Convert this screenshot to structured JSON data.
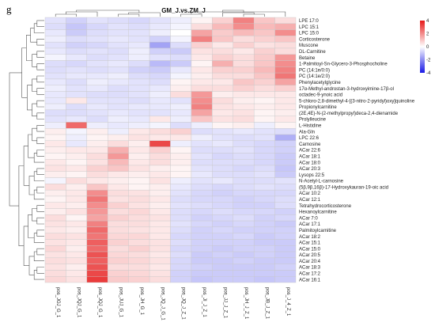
{
  "panel_letter": "g",
  "chart_data": {
    "type": "heatmap",
    "title": "GM_J.vs.ZM_J",
    "columns": [
      "pos_JGJ_G_1",
      "pos_JQJ_G_1",
      "pos_JQJ_G_1",
      "pos_JUJ_G_1",
      "pos_JH_G_1",
      "pos_JQ_J_G_1",
      "pos_JQ_J_Z_1",
      "pos_JI_J_Z_1",
      "pos_JJ_J_Z_1",
      "pos_JH_J_Z_1",
      "pos_JB_J_Z_1",
      "pos_J_4_Z_1"
    ],
    "rows": [
      "LPE 17:0",
      "LPC 15:1",
      "LPC 15:0",
      "Corticosterone",
      "Muscone",
      "DL-Carnitine",
      "Betaine",
      "1-Palmitoyl-Sn-Glycero-3-Phosphocholine",
      "PC (14:1e/0:0)",
      "PC (14:1e/2:0)",
      "Phenylacetylglycine",
      "17α-Methyl-androstan-3-hydroxyimine-17β-ol",
      "octadec-9-ynoic acid",
      "5-chloro-2,8-dimethyl-4-[(3-nitro-2-pyridyl)oxy]quinoline",
      "Propionylcarnitine",
      "(2E,4E)-N-(2-methylpropyl)deca-2,4-dienamide",
      "Prolylleucine",
      "L-Histidine",
      "Ala-Gln",
      "LPC 22:6",
      "Carnosine",
      "ACar 22:6",
      "ACar 18:1",
      "ACar 18:0",
      "ACar 20:3",
      "Lysops 22:5",
      "N-Acetyl-L-carnosine",
      "(5β,9β,16β)-17-Hydroxykauran-19-oic acid",
      "ACar 10:2",
      "ACar 12:1",
      "Tetrahydrocorticosterone",
      "Hexanoylcarnitine",
      "ACar 7:0",
      "ACar 17:1",
      "Palmitoylcarnitine",
      "ACar 18:2",
      "ACar 15:1",
      "ACar 15:0",
      "ACar 20:5",
      "ACar 20:4",
      "ACar 18:3",
      "ACar 17:2",
      "ACar 16:1"
    ],
    "values": [
      [
        -0.5,
        -0.8,
        -0.5,
        -0.6,
        -0.7,
        -0.5,
        -0.3,
        0.2,
        0.8,
        2.2,
        1.0,
        0.6
      ],
      [
        -0.6,
        -1.0,
        -0.7,
        -0.5,
        -0.6,
        -0.4,
        -0.2,
        0.6,
        1.2,
        2.0,
        1.2,
        1.4
      ],
      [
        -0.4,
        -0.9,
        -0.6,
        -0.5,
        -0.5,
        -0.3,
        0.0,
        1.6,
        0.9,
        1.2,
        1.0,
        2.0
      ],
      [
        -0.3,
        -0.6,
        -0.5,
        -0.4,
        -0.5,
        -0.8,
        -0.2,
        2.2,
        1.0,
        0.6,
        0.8,
        1.0
      ],
      [
        -0.5,
        -0.8,
        -0.7,
        -0.5,
        -0.4,
        -1.6,
        -0.6,
        0.8,
        0.4,
        0.8,
        0.5,
        0.6
      ],
      [
        -0.4,
        -0.6,
        -0.5,
        -0.6,
        -0.3,
        -0.8,
        -0.9,
        0.5,
        0.6,
        0.4,
        0.8,
        0.6
      ],
      [
        -0.2,
        -0.4,
        -0.6,
        -0.5,
        -0.3,
        -0.5,
        -0.6,
        0.4,
        0.8,
        0.6,
        0.9,
        1.8
      ],
      [
        -0.6,
        -0.7,
        -0.5,
        -0.4,
        -0.6,
        -1.2,
        -0.9,
        0.2,
        1.4,
        0.6,
        1.0,
        2.0
      ],
      [
        -0.6,
        -0.5,
        -0.6,
        -0.5,
        -0.8,
        -0.9,
        -0.4,
        0.4,
        0.8,
        0.8,
        1.2,
        2.2
      ],
      [
        -0.5,
        -0.4,
        -0.4,
        -0.3,
        -0.6,
        -0.7,
        -0.2,
        0.3,
        0.6,
        0.6,
        1.0,
        2.4
      ],
      [
        -0.4,
        -0.6,
        -0.3,
        -0.4,
        -0.5,
        -0.6,
        0.2,
        0.4,
        0.4,
        1.0,
        0.8,
        1.6
      ],
      [
        -0.3,
        -0.5,
        -0.4,
        -0.6,
        -0.5,
        -0.4,
        0.3,
        0.6,
        0.6,
        0.8,
        0.6,
        0.8
      ],
      [
        -0.4,
        -0.5,
        -0.6,
        -0.6,
        -0.5,
        -0.3,
        0.6,
        1.8,
        0.3,
        0.4,
        0.4,
        0.4
      ],
      [
        -0.4,
        0.4,
        -0.5,
        -0.5,
        -0.6,
        -0.4,
        -0.5,
        2.0,
        0.6,
        0.3,
        0.2,
        0.4
      ],
      [
        -0.3,
        -0.6,
        -0.4,
        -0.5,
        -0.4,
        -0.4,
        -0.3,
        2.2,
        0.5,
        0.4,
        0.3,
        0.4
      ],
      [
        -0.6,
        -0.6,
        -0.5,
        -0.4,
        -0.5,
        -0.5,
        -0.4,
        1.6,
        0.4,
        0.5,
        0.2,
        0.3
      ],
      [
        -0.5,
        -0.4,
        -0.6,
        -0.3,
        -0.4,
        0.4,
        -0.3,
        1.0,
        0.5,
        0.6,
        0.2,
        0.4
      ],
      [
        -0.3,
        2.6,
        -0.3,
        -0.4,
        -0.3,
        -0.2,
        -0.6,
        -0.3,
        0.2,
        0.3,
        -0.3,
        0.2
      ],
      [
        0.3,
        -0.2,
        0.3,
        -0.3,
        0.4,
        0.6,
        0.8,
        -0.6,
        -0.5,
        -0.4,
        -0.5,
        -0.6
      ],
      [
        0.2,
        -0.3,
        0.2,
        0.3,
        0.5,
        0.4,
        0.4,
        -0.3,
        -0.5,
        -0.6,
        -0.5,
        -1.4
      ],
      [
        0.4,
        -0.4,
        0.3,
        0.6,
        0.3,
        3.2,
        -0.3,
        -0.5,
        -0.4,
        -0.6,
        -0.7,
        -0.8
      ],
      [
        0.3,
        0.4,
        0.4,
        1.4,
        0.4,
        0.8,
        0.2,
        -0.6,
        -0.6,
        -0.5,
        -0.7,
        -0.8
      ],
      [
        0.2,
        0.3,
        0.6,
        1.8,
        0.3,
        0.6,
        0.3,
        -0.5,
        -0.7,
        -0.6,
        -0.7,
        -0.9
      ],
      [
        0.4,
        0.2,
        0.5,
        1.2,
        0.4,
        0.6,
        0.3,
        -0.6,
        -0.6,
        -0.6,
        -0.7,
        -0.9
      ],
      [
        0.5,
        0.4,
        0.8,
        1.0,
        0.5,
        0.3,
        0.2,
        -0.5,
        -0.6,
        -0.7,
        -0.6,
        -1.0
      ],
      [
        0.3,
        0.2,
        0.6,
        0.4,
        0.3,
        0.4,
        0.2,
        -0.4,
        -0.6,
        -0.6,
        -0.5,
        -0.9
      ],
      [
        -0.2,
        0.6,
        0.4,
        0.3,
        0.2,
        0.5,
        -0.3,
        -0.5,
        -0.4,
        -0.6,
        -0.6,
        -0.5
      ],
      [
        0.6,
        0.3,
        1.0,
        0.4,
        0.2,
        0.3,
        -0.4,
        -0.6,
        -0.7,
        -0.6,
        -0.5,
        -0.6
      ],
      [
        0.3,
        0.4,
        2.0,
        0.6,
        0.5,
        0.3,
        -0.5,
        -0.7,
        -0.8,
        -0.7,
        -0.7,
        -0.7
      ],
      [
        0.2,
        0.4,
        2.4,
        0.5,
        0.6,
        0.4,
        -0.6,
        -0.7,
        -0.7,
        -0.8,
        -0.7,
        -0.6
      ],
      [
        0.4,
        0.3,
        2.0,
        0.8,
        0.5,
        0.3,
        -0.5,
        -0.6,
        -0.7,
        -0.8,
        -0.8,
        -0.6
      ],
      [
        0.3,
        0.5,
        1.8,
        0.6,
        0.7,
        0.4,
        -0.6,
        -0.7,
        -0.6,
        -0.7,
        -0.7,
        -0.8
      ],
      [
        0.6,
        0.2,
        1.6,
        0.8,
        0.6,
        0.5,
        -0.6,
        -0.8,
        -0.7,
        -0.6,
        -0.8,
        -0.7
      ],
      [
        0.5,
        0.4,
        2.2,
        0.6,
        0.6,
        0.4,
        -0.5,
        -0.7,
        -0.8,
        -0.7,
        -0.8,
        -0.9
      ],
      [
        0.4,
        0.3,
        2.6,
        0.6,
        0.5,
        0.4,
        -0.6,
        -0.8,
        -0.7,
        -0.8,
        -0.8,
        -0.8
      ],
      [
        0.6,
        0.5,
        2.4,
        0.7,
        0.7,
        0.4,
        -0.7,
        -0.8,
        -0.8,
        -0.7,
        -0.9,
        -0.8
      ],
      [
        0.5,
        0.4,
        2.8,
        0.8,
        0.6,
        0.5,
        -0.6,
        -0.8,
        -0.8,
        -0.8,
        -0.9,
        -0.9
      ],
      [
        0.7,
        0.3,
        2.6,
        0.6,
        0.8,
        0.5,
        -0.7,
        -0.8,
        -0.9,
        -0.8,
        -0.8,
        -0.9
      ],
      [
        0.5,
        0.4,
        3.0,
        0.7,
        0.6,
        0.4,
        -0.6,
        -0.9,
        -0.8,
        -0.9,
        -0.8,
        -0.9
      ],
      [
        0.6,
        0.5,
        2.8,
        0.8,
        0.7,
        0.5,
        -0.7,
        -0.9,
        -0.9,
        -0.8,
        -0.9,
        -0.9
      ],
      [
        0.5,
        0.3,
        3.0,
        0.6,
        0.6,
        0.4,
        -0.7,
        -0.8,
        -0.9,
        -0.9,
        -0.9,
        -0.8
      ],
      [
        0.6,
        0.4,
        3.2,
        0.8,
        0.7,
        0.5,
        -0.8,
        -0.9,
        -0.9,
        -0.9,
        -0.9,
        -0.9
      ],
      [
        0.7,
        0.5,
        3.4,
        0.9,
        0.8,
        0.6,
        -0.8,
        -1.0,
        -0.9,
        -0.9,
        -1.0,
        -0.9
      ]
    ],
    "scale": {
      "min": -4,
      "max": 4,
      "ticks": [
        "4",
        "2",
        "0",
        "-2",
        "-4"
      ],
      "low_color": "#1a1ae6",
      "mid_color": "#ffffff",
      "high_color": "#e61a1a"
    },
    "row_dendrogram": true,
    "column_dendrogram": true,
    "legend_placement": "right"
  }
}
